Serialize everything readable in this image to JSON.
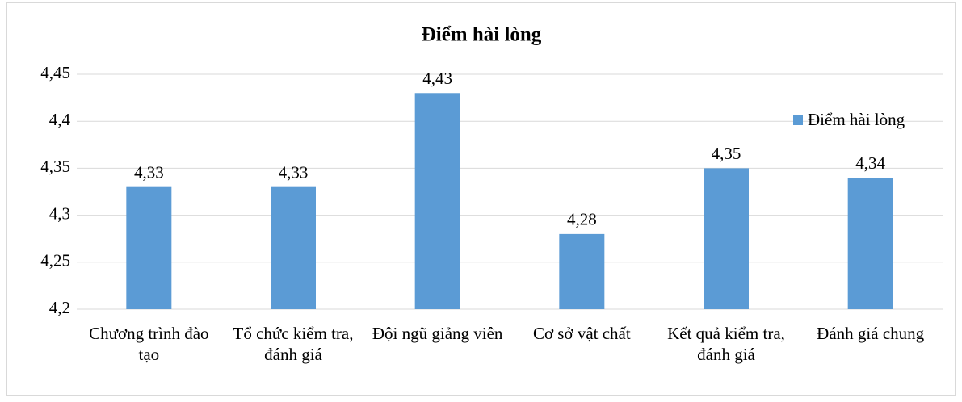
{
  "chart_data": {
    "type": "bar",
    "title": "Điểm hài lòng",
    "categories": [
      "Chương trình đào tạo",
      "Tổ chức kiểm tra, đánh giá",
      "Đội ngũ giảng viên",
      "Cơ sở vật chất",
      "Kết quả kiểm tra, đánh giá",
      "Đánh giá chung"
    ],
    "series": [
      {
        "name": "Điểm hài lòng",
        "color": "#5b9bd5",
        "values": [
          4.33,
          4.33,
          4.43,
          4.28,
          4.35,
          4.34
        ],
        "value_labels": [
          "4,33",
          "4,33",
          "4,43",
          "4,28",
          "4,35",
          "4,34"
        ]
      }
    ],
    "ylim": [
      4.2,
      4.45
    ],
    "yticks": [
      {
        "value": 4.2,
        "label": "4,2"
      },
      {
        "value": 4.25,
        "label": "4,25"
      },
      {
        "value": 4.3,
        "label": "4,3"
      },
      {
        "value": 4.35,
        "label": "4,35"
      },
      {
        "value": 4.4,
        "label": "4,4"
      },
      {
        "value": 4.45,
        "label": "4,45"
      }
    ],
    "grid": true,
    "legend": "top-right"
  }
}
